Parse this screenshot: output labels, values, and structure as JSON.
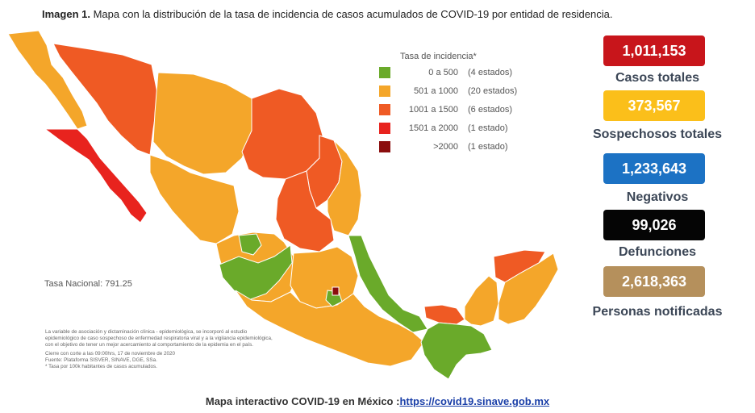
{
  "title": {
    "prefix": "Imagen 1.",
    "text": "Mapa con la distribución de la tasa de incidencia de casos acumulados de COVID-19 por entidad de residencia."
  },
  "legend": {
    "title": "Tasa de incidencia*",
    "items": [
      {
        "range": "0 a   500",
        "count": "(4 estados)",
        "color": "#6aaa2a"
      },
      {
        "range": "501 a  1000",
        "count": "(20 estados)",
        "color": "#f4a62a"
      },
      {
        "range": "1001 a  1500",
        "count": "(6 estados)",
        "color": "#ef5a24"
      },
      {
        "range": "1501 a  2000",
        "count": "(1 estado)",
        "color": "#e8231e"
      },
      {
        "range": ">2000",
        "count": "(1 estado)",
        "color": "#8b0e0e"
      }
    ]
  },
  "national_rate": "Tasa Nacional: 791.25",
  "notes": {
    "line1": "La variable de asociación y dictaminación clínica - epidemiológica, se incorporó al estudio",
    "line2": "epidemiológico de caso sospechoso de enfermedad respiratoria viral y a la vigilancia epidemiológica,",
    "line3": "con el objetivo de tener un mejor acercamiento al comportamiento de la epidemia en el país.",
    "line4": "Cierre con corte a las 09:00hrs, 17 de noviembre de 2020",
    "line5": "Fuente: Plataforma SISVER, SINAVE, DGE, SSa.",
    "line6": "* Tasa por 100k habitantes de casos acumulados."
  },
  "stats": [
    {
      "value": "1,011,153",
      "label": "Casos totales",
      "color": "#c8151b"
    },
    {
      "value": "373,567",
      "label": "Sospechosos totales",
      "color": "#fbbf1a"
    },
    {
      "value": "1,233,643",
      "label": "Negativos",
      "color": "#1c72c4"
    },
    {
      "value": "99,026",
      "label": "Defunciones",
      "color": "#050505"
    },
    {
      "value": "2,618,363",
      "label": "Personas notificadas",
      "color": "#b5905c"
    }
  ],
  "footer": {
    "text": "Mapa interactivo COVID-19 en México :",
    "link": "https://covid19.sinave.gob.mx"
  }
}
